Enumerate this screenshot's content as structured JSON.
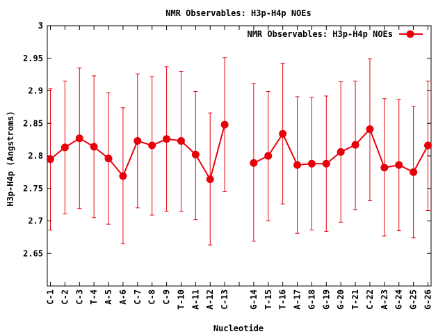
{
  "chart_data": {
    "type": "line",
    "title": "NMR Observables: H3p-H4p NOEs",
    "xlabel": "Nucleotide",
    "ylabel": "H3p-H4p (Angstroms)",
    "ylim": [
      2.6,
      3.0
    ],
    "yticks": [
      "2.65",
      "2.7",
      "2.75",
      "2.8",
      "2.85",
      "2.9",
      "2.95",
      "3"
    ],
    "grid": false,
    "legend_position": "top-right",
    "series_color": "#e8000b",
    "categories": [
      "C-1",
      "C-2",
      "C-3",
      "T-4",
      "A-5",
      "A-6",
      "C-7",
      "C-8",
      "C-9",
      "T-10",
      "A-11",
      "A-12",
      "C-13",
      "",
      "G-14",
      "T-15",
      "T-16",
      "A-17",
      "G-18",
      "G-19",
      "G-20",
      "T-21",
      "C-22",
      "A-23",
      "G-24",
      "G-25",
      "G-26"
    ],
    "series": [
      {
        "name": "NMR Observables: H3p-H4p NOEs",
        "values": [
          2.795,
          2.813,
          2.827,
          2.814,
          2.796,
          2.769,
          2.823,
          2.816,
          2.826,
          2.823,
          2.802,
          2.764,
          2.848,
          null,
          2.789,
          2.8,
          2.834,
          2.786,
          2.788,
          2.788,
          2.806,
          2.817,
          2.841,
          2.782,
          2.786,
          2.775,
          2.816
        ],
        "error_low": [
          2.686,
          2.711,
          2.719,
          2.705,
          2.695,
          2.665,
          2.72,
          2.709,
          2.715,
          2.715,
          2.702,
          2.663,
          2.745,
          null,
          2.669,
          2.7,
          2.726,
          2.681,
          2.686,
          2.684,
          2.698,
          2.717,
          2.731,
          2.677,
          2.685,
          2.674,
          2.716
        ],
        "error_high": [
          2.903,
          2.915,
          2.935,
          2.923,
          2.897,
          2.874,
          2.926,
          2.922,
          2.937,
          2.93,
          2.899,
          2.866,
          2.951,
          null,
          2.911,
          2.899,
          2.942,
          2.891,
          2.89,
          2.892,
          2.914,
          2.915,
          2.949,
          2.888,
          2.887,
          2.876,
          2.915
        ]
      }
    ]
  }
}
